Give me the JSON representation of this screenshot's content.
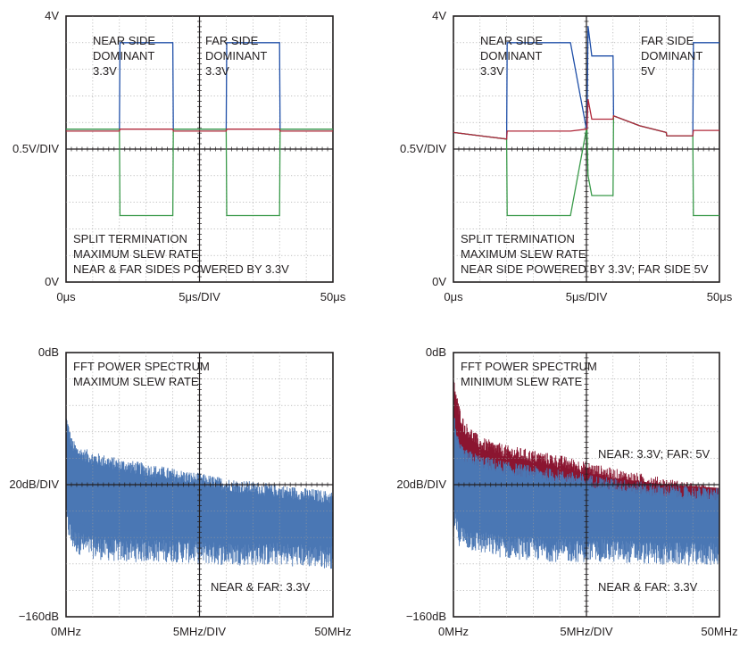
{
  "chart_data": [
    {
      "type": "line",
      "panel": "top-left",
      "y_axis": {
        "top": "4V",
        "mid": "0.5V/DIV",
        "bottom": "0V"
      },
      "x_axis": {
        "left": "0μs",
        "mid": "5μs/DIV",
        "right": "50μs"
      },
      "ylim": [
        0,
        4
      ],
      "xlim": [
        0,
        50
      ],
      "annotations": {
        "near": [
          "NEAR SIDE",
          "DOMINANT",
          "3.3V"
        ],
        "far": [
          "FAR SIDE",
          "DOMINANT",
          "3.3V"
        ],
        "notes": [
          "SPLIT TERMINATION",
          "MAXIMUM SLEW RATE",
          "NEAR & FAR SIDES POWERED BY 3.3V"
        ]
      },
      "colors": {
        "canh": "#1f4fa8",
        "canl": "#3a9a4a",
        "sum": "#b0283a"
      },
      "series": [
        {
          "x": [
            0,
            10,
            10.1,
            20,
            20.1,
            30,
            30.1,
            40,
            40.1,
            50
          ],
          "values": [
            2.3,
            2.3,
            3.6,
            3.6,
            2.3,
            2.3,
            3.6,
            3.6,
            2.3,
            2.3
          ]
        },
        {
          "x": [
            0,
            10,
            10.1,
            20,
            20.1,
            30,
            30.1,
            40,
            40.1,
            50
          ],
          "values": [
            2.3,
            2.3,
            1.0,
            1.0,
            2.3,
            2.3,
            1.0,
            1.0,
            2.3,
            2.3
          ]
        },
        {
          "x": [
            0,
            10,
            10.1,
            20,
            20.1,
            30,
            30.1,
            40,
            40.1,
            50
          ],
          "values": [
            2.27,
            2.27,
            2.3,
            2.3,
            2.27,
            2.27,
            2.3,
            2.3,
            2.27,
            2.27
          ]
        }
      ]
    },
    {
      "type": "line",
      "panel": "top-right",
      "y_axis": {
        "top": "4V",
        "mid": "0.5V/DIV",
        "bottom": "0V"
      },
      "x_axis": {
        "left": "0μs",
        "mid": "5μs/DIV",
        "right": "50μs"
      },
      "ylim": [
        0,
        4
      ],
      "xlim": [
        0,
        50
      ],
      "annotations": {
        "near": [
          "NEAR SIDE",
          "DOMINANT",
          "3.3V"
        ],
        "far": [
          "FAR SIDE",
          "DOMINANT",
          "5V"
        ],
        "notes": [
          "SPLIT TERMINATION",
          "MAXIMUM SLEW RATE",
          "NEAR SIDE POWERED BY 3.3V; FAR SIDE 5V"
        ]
      },
      "colors": {
        "canh": "#1f4fa8",
        "canl": "#3a9a4a",
        "sum": "#b0283a"
      },
      "series": [
        {
          "x": [
            0,
            5,
            10,
            10.1,
            20,
            22,
            25,
            25.1,
            25.3,
            26,
            30,
            30.1,
            35,
            40,
            40.1,
            45,
            45.1,
            50
          ],
          "values": [
            2.25,
            2.2,
            2.15,
            3.6,
            3.6,
            3.6,
            2.3,
            2.3,
            3.85,
            3.4,
            3.4,
            2.5,
            2.35,
            2.25,
            2.2,
            2.2,
            3.6,
            3.6
          ]
        },
        {
          "x": [
            0,
            5,
            10,
            10.1,
            20,
            22,
            25,
            25.1,
            25.3,
            26,
            30,
            30.1,
            35,
            40,
            40.1,
            45,
            45.1,
            50
          ],
          "values": [
            2.25,
            2.2,
            2.15,
            1.0,
            1.0,
            1.0,
            2.3,
            2.3,
            1.6,
            1.3,
            1.3,
            2.5,
            2.35,
            2.25,
            2.2,
            2.2,
            1.0,
            1.0
          ]
        },
        {
          "x": [
            0,
            5,
            10,
            10.1,
            20,
            22,
            25,
            25.1,
            25.3,
            26,
            30,
            30.1,
            35,
            40,
            40.1,
            45,
            45.1,
            50
          ],
          "values": [
            2.25,
            2.2,
            2.15,
            2.27,
            2.27,
            2.27,
            2.3,
            2.3,
            2.75,
            2.45,
            2.45,
            2.5,
            2.35,
            2.25,
            2.2,
            2.2,
            2.28,
            2.28
          ]
        }
      ]
    },
    {
      "type": "area",
      "panel": "bottom-left",
      "y_axis": {
        "top": "0dB",
        "mid": "20dB/DIV",
        "bottom": "−160dB"
      },
      "x_axis": {
        "left": "0MHz",
        "mid": "5MHz/DIV",
        "right": "50MHz"
      },
      "ylim": [
        -160,
        0
      ],
      "xlim": [
        0,
        50
      ],
      "annotations": {
        "notes": [
          "FFT POWER SPECTRUM",
          "MAXIMUM SLEW RATE"
        ],
        "series_label": "NEAR & FAR: 3.3V"
      },
      "colors": {
        "near_far": "#4a77b4",
        "mixed": "#8b1530"
      },
      "series": [
        {
          "name": "NEAR & FAR: 3.3V",
          "x": [
            0,
            1,
            2,
            5,
            10,
            20,
            30,
            40,
            50
          ],
          "upper": [
            -40,
            -55,
            -60,
            -64,
            -68,
            -74,
            -80,
            -84,
            -88
          ],
          "lower": [
            -100,
            -112,
            -115,
            -118,
            -120,
            -120,
            -122,
            -122,
            -124
          ]
        }
      ]
    },
    {
      "type": "area",
      "panel": "bottom-right",
      "y_axis": {
        "top": "0dB",
        "mid": "20dB/DIV",
        "bottom": "−160dB"
      },
      "x_axis": {
        "left": "0MHz",
        "mid": "5MHz/DIV",
        "right": "50MHz"
      },
      "ylim": [
        -160,
        0
      ],
      "xlim": [
        0,
        50
      ],
      "annotations": {
        "notes": [
          "FFT POWER SPECTRUM",
          "MINIMUM SLEW RATE"
        ],
        "series_labels": [
          "NEAR: 3.3V; FAR: 5V",
          "NEAR & FAR: 3.3V"
        ]
      },
      "colors": {
        "near_far": "#4a77b4",
        "mixed": "#8b1530"
      },
      "series": [
        {
          "name": "NEAR: 3.3V; FAR: 5V",
          "x": [
            0,
            1,
            2,
            5,
            10,
            20,
            30,
            40,
            50
          ],
          "upper": [
            -18,
            -35,
            -45,
            -55,
            -60,
            -66,
            -74,
            -80,
            -86
          ],
          "lower": [
            -60,
            -70,
            -72,
            -75,
            -78,
            -82,
            -88,
            -92,
            -94
          ]
        },
        {
          "name": "NEAR & FAR: 3.3V",
          "x": [
            0,
            1,
            2,
            5,
            10,
            20,
            30,
            40,
            50
          ],
          "upper": [
            -38,
            -58,
            -62,
            -66,
            -70,
            -75,
            -80,
            -84,
            -86
          ],
          "lower": [
            -100,
            -110,
            -112,
            -115,
            -118,
            -120,
            -120,
            -122,
            -122
          ]
        }
      ]
    }
  ]
}
